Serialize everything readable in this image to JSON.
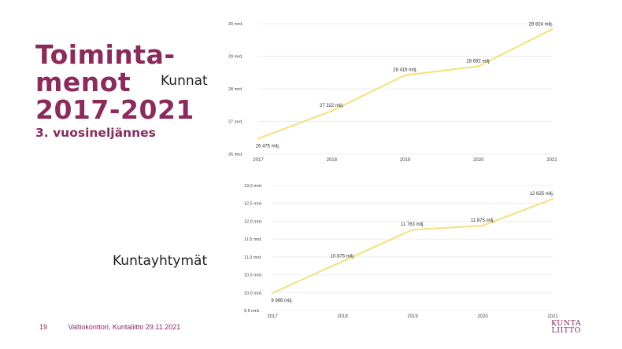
{
  "slide": {
    "title_lines": [
      "Toiminta-",
      "menot",
      "2017-2021"
    ],
    "subtitle": "3. vuosineljännes",
    "page_number": "19",
    "footer_text": "Valtiokonttori,  Kuntaliitto  29.11.2021",
    "logo_lines": [
      "KUNTA",
      "LIITTO"
    ]
  },
  "colors": {
    "accent": "#8b2a5b",
    "line": "#f5e07a",
    "grid": "#ececec",
    "text": "#444444"
  },
  "chart_data": [
    {
      "type": "line",
      "title": "Kunnat",
      "categories": [
        "2017",
        "2018",
        "2019",
        "2020",
        "2021"
      ],
      "ylim": [
        26,
        30
      ],
      "yticks": [
        26,
        27,
        28,
        29,
        30
      ],
      "ytick_labels": [
        "26 mrd.",
        "27 mrd.",
        "28 mrd.",
        "29 mrd.",
        "30 mrd."
      ],
      "grid": true,
      "legend": "none",
      "series": [
        {
          "values": [
            26.475,
            27.322,
            28.416,
            28.692,
            29.824
          ],
          "labels": [
            "26 475 milj.",
            "27 322 milj.",
            "28 416 milj.",
            "28 692 milj.",
            "29 824 milj."
          ]
        }
      ]
    },
    {
      "type": "line",
      "title": "Kuntayhtymät",
      "categories": [
        "2017",
        "2018",
        "2019",
        "2020",
        "2021"
      ],
      "ylim": [
        9.5,
        13.0
      ],
      "yticks": [
        9.5,
        10.0,
        10.5,
        11.0,
        11.5,
        12.0,
        12.5,
        13.0
      ],
      "ytick_labels": [
        "9,5 mrd.",
        "10,0 mrd.",
        "10,5 mrd.",
        "11,0 mrd.",
        "11,5 mrd.",
        "12,0 mrd.",
        "12,5 mrd.",
        "13,0 mrd."
      ],
      "grid": true,
      "legend": "none",
      "series": [
        {
          "values": [
            9.986,
            10.875,
            11.763,
            11.875,
            12.625
          ],
          "labels": [
            "9 986 milj.",
            "10 875 milj.",
            "11 763 milj.",
            "11 875 milj.",
            "12 625 milj."
          ]
        }
      ]
    }
  ]
}
